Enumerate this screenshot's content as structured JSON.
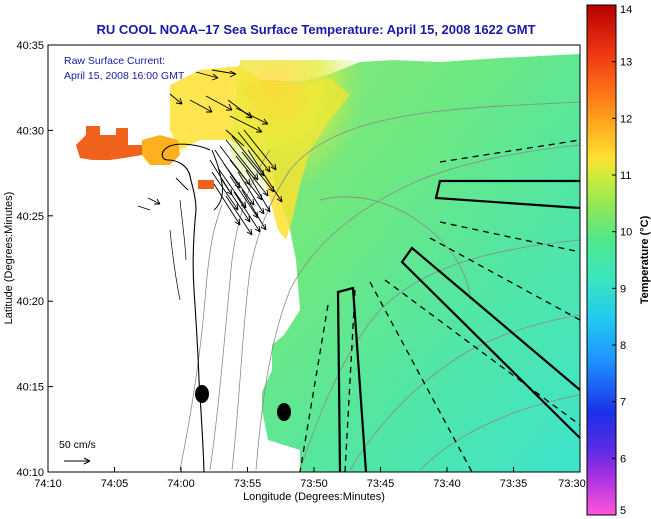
{
  "chart_data": {
    "type": "heatmap",
    "title": "RU COOL  NOAA–17  Sea Surface Temperature:  April 15, 2008 1622 GMT",
    "xlabel": "Longitude (Degrees:Minutes)",
    "ylabel": "Latitude (Degrees:Minutes)",
    "x_ticks": [
      "74:10",
      "74:05",
      "74:00",
      "73:55",
      "73:50",
      "73:45",
      "73:40",
      "73:35",
      "73:30"
    ],
    "y_ticks": [
      "40:35",
      "40:30",
      "40:25",
      "40:20",
      "40:15",
      "40:10"
    ],
    "xlim": [
      -74.1667,
      -73.5
    ],
    "ylim": [
      40.1667,
      40.5833
    ],
    "colorbar": {
      "label": "Temperature (°C)",
      "range": [
        5,
        14
      ],
      "ticks": [
        "5",
        "6",
        "7",
        "8",
        "9",
        "10",
        "11",
        "12",
        "13",
        "14"
      ],
      "colors": [
        "#ff55dd",
        "#8a2be2",
        "#1c2fe8",
        "#1e90ff",
        "#2ad1e6",
        "#39e8a8",
        "#6ee86a",
        "#c8ec3a",
        "#ffe030",
        "#ffb020",
        "#ff7a18",
        "#f03a14",
        "#b80000"
      ]
    },
    "annotation_lines": [
      "Raw Surface Current:",
      "April 15, 2008 16:00 GMT"
    ],
    "scale_label": "50 cm/s",
    "colors": {
      "title": "#1a1aa8",
      "annotation": "#1a1aa8",
      "land": "#ffffff",
      "coast": "#000000",
      "bathymetry": "#8a8a8a"
    }
  }
}
